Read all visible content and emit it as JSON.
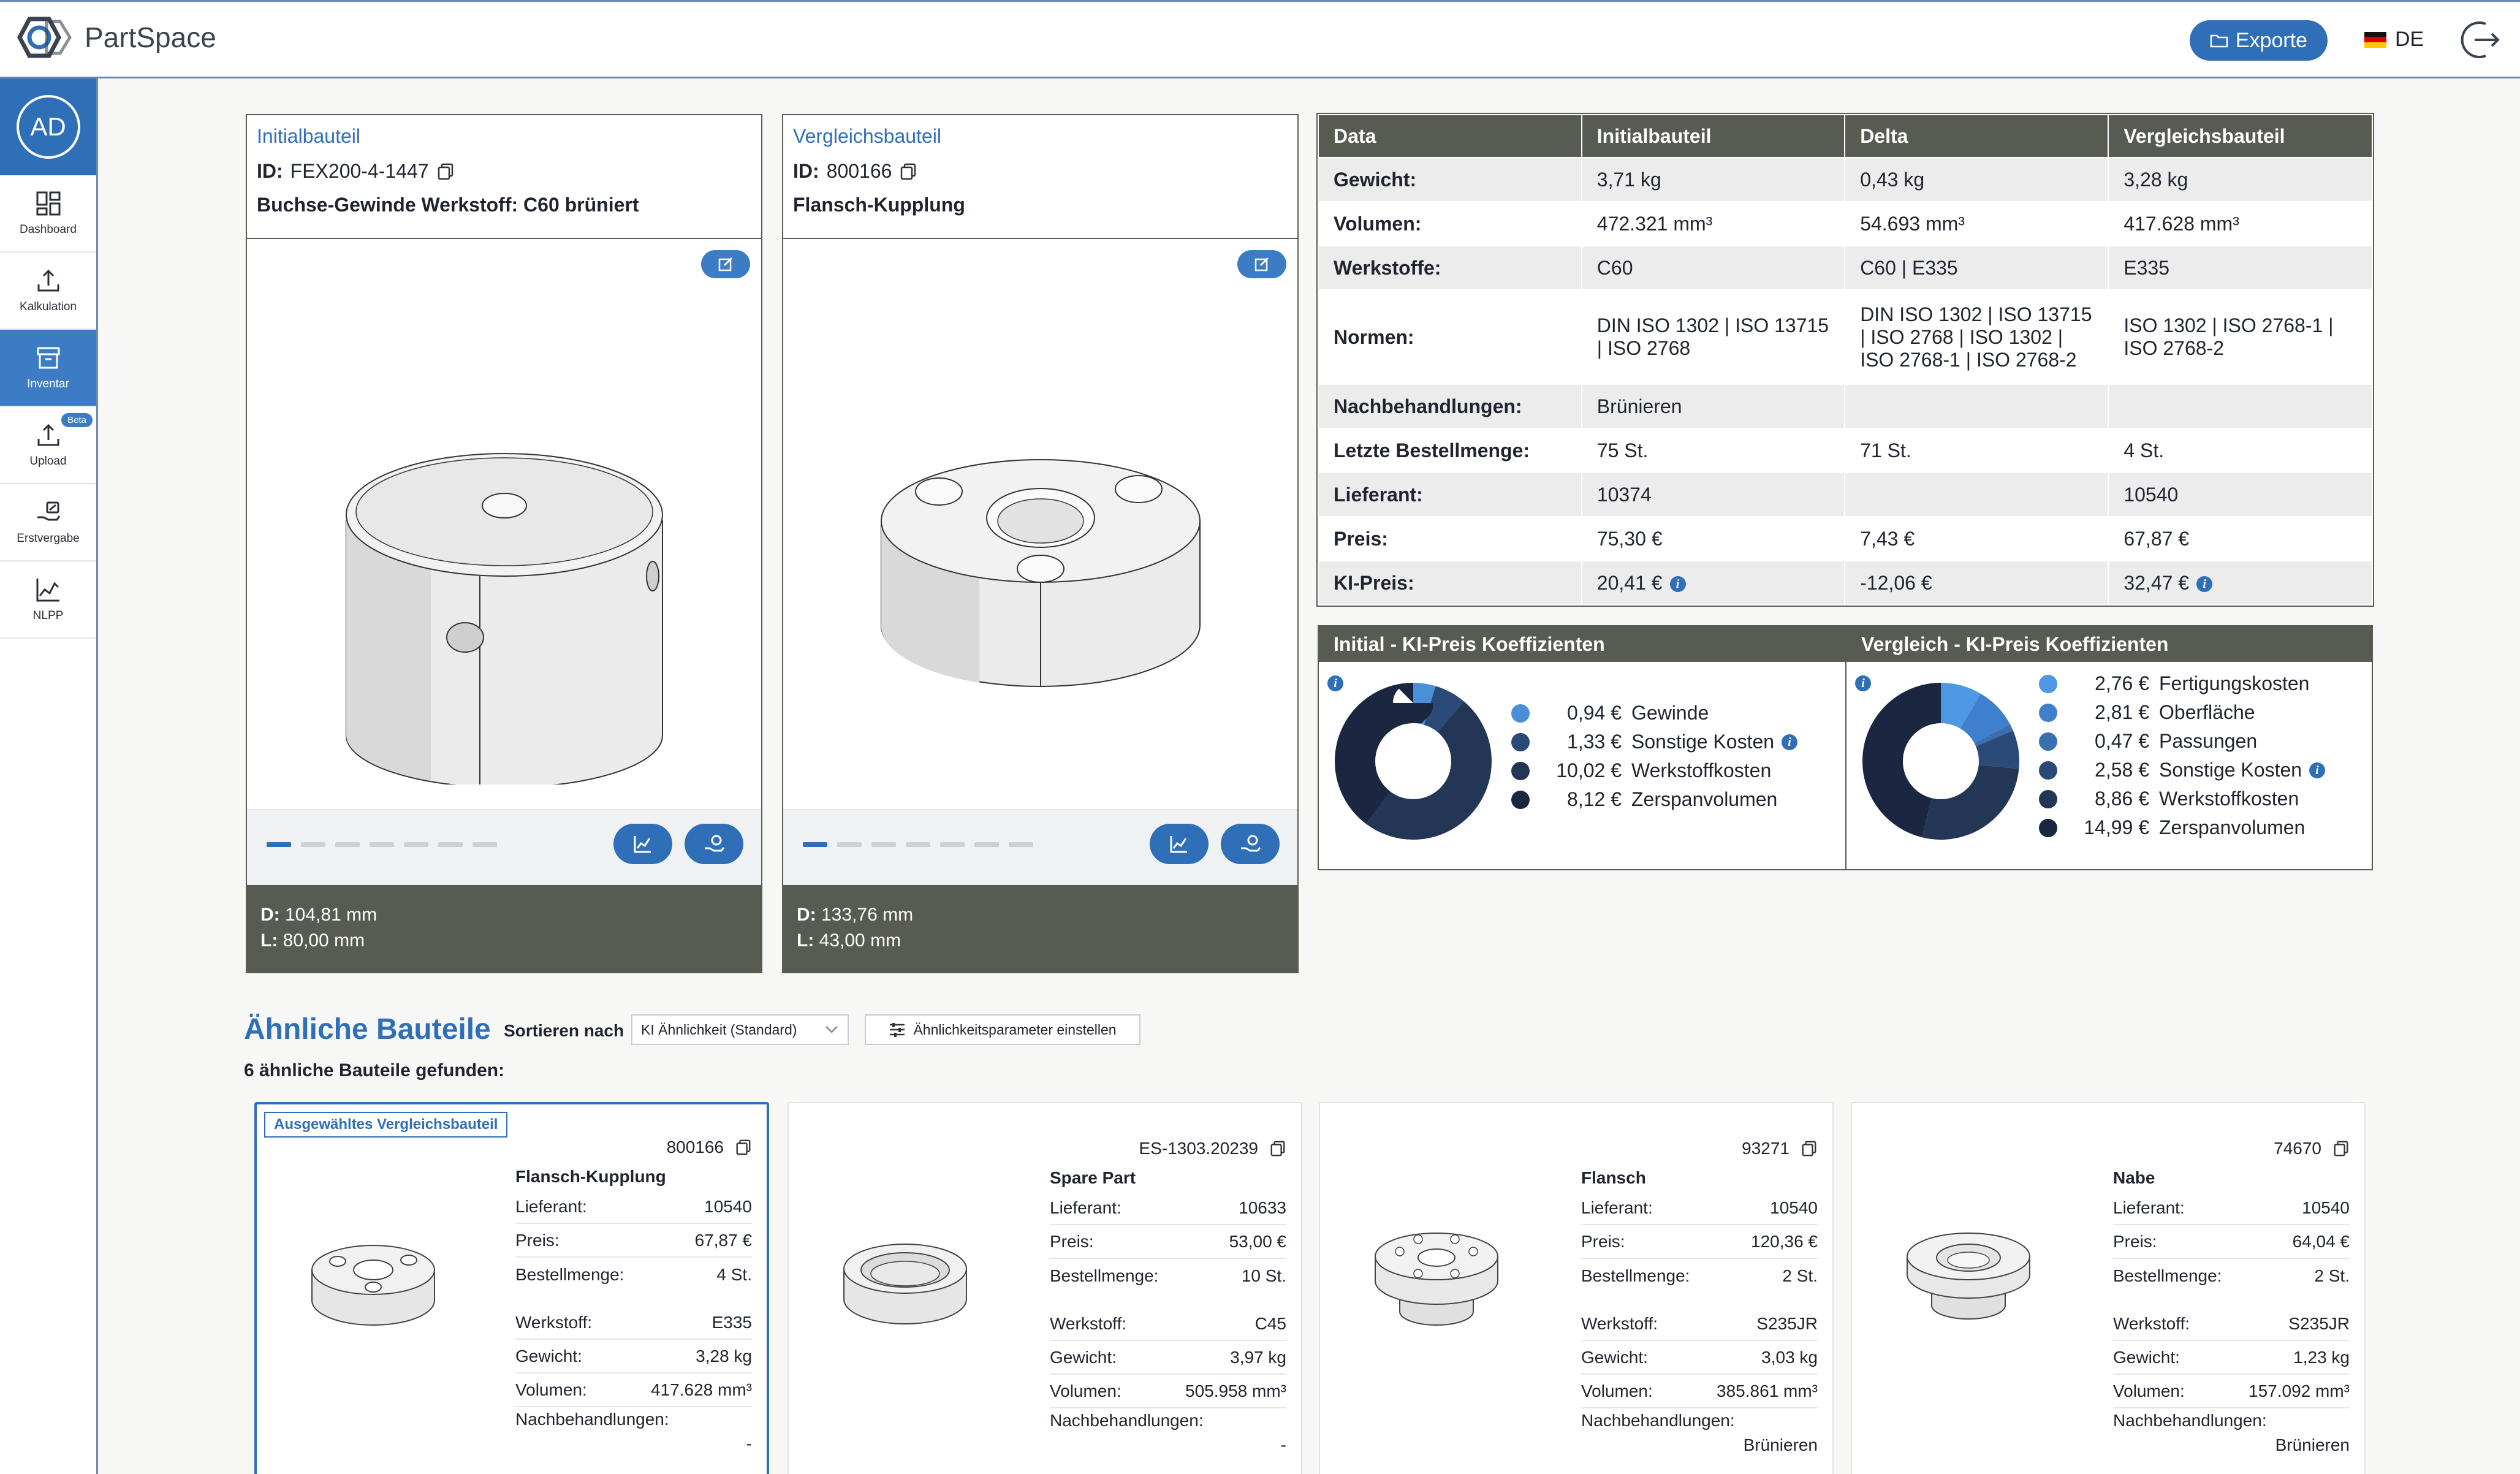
{
  "app": {
    "name": "PartSpace"
  },
  "header": {
    "exports_label": "Exporte",
    "language": "DE"
  },
  "user": {
    "initials": "AD"
  },
  "sidebar": {
    "items": [
      {
        "label": "Dashboard",
        "icon": "dashboard-icon"
      },
      {
        "label": "Kalkulation",
        "icon": "upload-tray-icon"
      },
      {
        "label": "Inventar",
        "icon": "archive-icon",
        "active": true
      },
      {
        "label": "Upload",
        "icon": "upload-tray-icon",
        "badge": "Beta"
      },
      {
        "label": "Erstvergabe",
        "icon": "hand-coin-icon"
      },
      {
        "label": "NLPP",
        "icon": "line-chart-icon"
      }
    ]
  },
  "initial": {
    "type": "Initialbauteil",
    "id_label": "ID:",
    "id": "FEX200-4-1447",
    "name": "Buchse-Gewinde Werkstoff: C60 brüniert",
    "d_label": "D:",
    "d": "104,81 mm",
    "l_label": "L:",
    "l": "80,00 mm"
  },
  "comparison": {
    "type": "Vergleichsbauteil",
    "id_label": "ID:",
    "id": "800166",
    "name": "Flansch-Kupplung",
    "d_label": "D:",
    "d": "133,76 mm",
    "l_label": "L:",
    "l": "43,00 mm"
  },
  "compare_table": {
    "headers": [
      "Data",
      "Initialbauteil",
      "Delta",
      "Vergleichsbauteil"
    ],
    "rows": [
      {
        "label": "Gewicht:",
        "initial": "3,71 kg",
        "delta": "0,43 kg",
        "comparison": "3,28 kg"
      },
      {
        "label": "Volumen:",
        "initial": "472.321 mm³",
        "delta": "54.693 mm³",
        "comparison": "417.628 mm³"
      },
      {
        "label": "Werkstoffe:",
        "initial": "C60",
        "delta": "C60 | E335",
        "comparison": "E335"
      },
      {
        "label": "Normen:",
        "initial": "DIN ISO 1302 | ISO 13715 | ISO 2768",
        "delta": "DIN ISO 1302 | ISO 13715 | ISO 2768 | ISO 1302 | ISO 2768-1 | ISO 2768-2",
        "comparison": "ISO 1302 | ISO 2768-1 | ISO 2768-2"
      },
      {
        "label": "Nachbehandlungen:",
        "initial": "Brünieren",
        "delta": "",
        "comparison": ""
      },
      {
        "label": "Letzte Bestellmenge:",
        "initial": "75 St.",
        "delta": "71 St.",
        "comparison": "4 St."
      },
      {
        "label": "Lieferant:",
        "initial": "10374",
        "delta": "",
        "comparison": "10540"
      },
      {
        "label": "Preis:",
        "initial": "75,30 €",
        "delta": "7,43 €",
        "comparison": "67,87 €"
      },
      {
        "label": "KI-Preis:",
        "initial": "20,41 €",
        "delta": "-12,06 €",
        "comparison": "32,47 €"
      }
    ]
  },
  "coefficients": {
    "initial": {
      "title": "Initial - KI-Preis Koeffizienten",
      "items": [
        {
          "value": "0,94 €",
          "label": "Gewinde",
          "amount": 0.94,
          "color": "#4a8fd8"
        },
        {
          "value": "1,33 €",
          "label": "Sonstige Kosten",
          "amount": 1.33,
          "color": "#2c4a78",
          "info": true
        },
        {
          "value": "10,02 €",
          "label": "Werkstoffkosten",
          "amount": 10.02,
          "color": "#243656"
        },
        {
          "value": "8,12 €",
          "label": "Zerspanvolumen",
          "amount": 8.12,
          "color": "#1b2640"
        }
      ]
    },
    "comparison": {
      "title": "Vergleich - KI-Preis Koeffizienten",
      "items": [
        {
          "value": "2,76 €",
          "label": "Fertigungskosten",
          "amount": 2.76,
          "color": "#4e98e4"
        },
        {
          "value": "2,81 €",
          "label": "Oberfläche",
          "amount": 2.81,
          "color": "#3f80cc"
        },
        {
          "value": "0,47 €",
          "label": "Passungen",
          "amount": 0.47,
          "color": "#3a6fb0"
        },
        {
          "value": "2,58 €",
          "label": "Sonstige Kosten",
          "amount": 2.58,
          "color": "#2c4a78",
          "info": true
        },
        {
          "value": "8,86 €",
          "label": "Werkstoffkosten",
          "amount": 8.86,
          "color": "#243656"
        },
        {
          "value": "14,99 €",
          "label": "Zerspanvolumen",
          "amount": 14.99,
          "color": "#1b2640"
        }
      ]
    }
  },
  "similar": {
    "title": "Ähnliche Bauteile",
    "sort_label": "Sortieren nach",
    "sort_value": "KI Ähnlichkeit (Standard)",
    "params_label": "Ähnlichkeitsparameter einstellen",
    "found": "6 ähnliche Bauteile gefunden:",
    "labels": {
      "supplier": "Lieferant:",
      "price": "Preis:",
      "qty": "Bestellmenge:",
      "material": "Werkstoff:",
      "weight": "Gewicht:",
      "volume": "Volumen:",
      "post": "Nachbehandlungen:"
    },
    "items": [
      {
        "badge": "Ausgewähltes Vergleichsbauteil",
        "id": "800166",
        "name": "Flansch-Kupplung",
        "supplier": "10540",
        "price": "67,87 €",
        "qty": "4 St.",
        "material": "E335",
        "weight": "3,28 kg",
        "volume": "417.628 mm³",
        "post": "-"
      },
      {
        "id": "ES-1303.20239",
        "name": "Spare Part",
        "supplier": "10633",
        "price": "53,00 €",
        "qty": "10 St.",
        "material": "C45",
        "weight": "3,97 kg",
        "volume": "505.958 mm³",
        "post": "-"
      },
      {
        "id": "93271",
        "name": "Flansch",
        "supplier": "10540",
        "price": "120,36 €",
        "qty": "2 St.",
        "material": "S235JR",
        "weight": "3,03 kg",
        "volume": "385.861 mm³",
        "post": "Brünieren"
      },
      {
        "id": "74670",
        "name": "Nabe",
        "supplier": "10540",
        "price": "64,04 €",
        "qty": "2 St.",
        "material": "S235JR",
        "weight": "1,23 kg",
        "volume": "157.092 mm³",
        "post": "Brünieren"
      }
    ]
  }
}
